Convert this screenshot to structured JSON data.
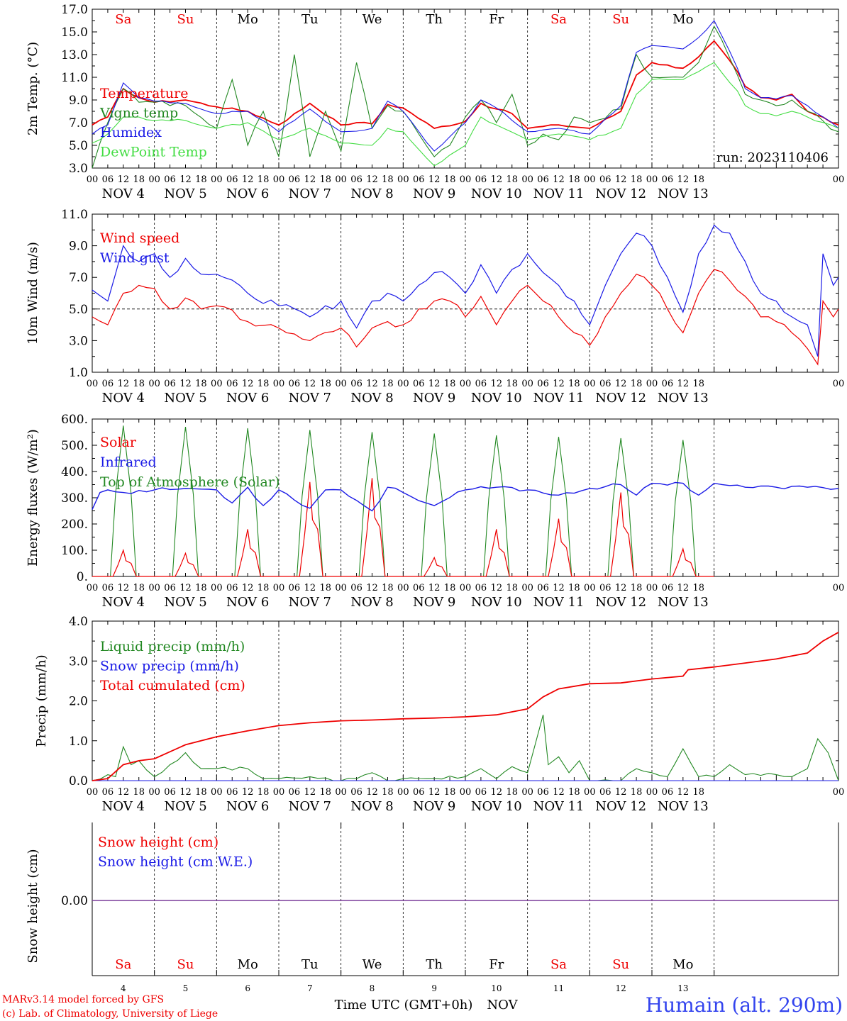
{
  "run_label": "run: 2023110406",
  "footer": {
    "model": "MARv3.14 model forced by GFS",
    "credit": "(c) Lab. of Climatology, University of Liege",
    "xlabel": "Time UTC (GMT+0h)",
    "month": "NOV",
    "station": "Humain (alt. 290m)"
  },
  "days": {
    "names": [
      "Sa",
      "Su",
      "Mo",
      "Tu",
      "We",
      "Th",
      "Fr",
      "Sa",
      "Su",
      "Mo"
    ],
    "colors": [
      "#ee0000",
      "#ee0000",
      "#000000",
      "#000000",
      "#000000",
      "#000000",
      "#000000",
      "#ee0000",
      "#ee0000",
      "#000000"
    ],
    "dates": [
      "NOV  4",
      "NOV  5",
      "NOV  6",
      "NOV  7",
      "NOV  8",
      "NOV  9",
      "NOV 10",
      "NOV 11",
      "NOV 12",
      "NOV 13"
    ],
    "numbers": [
      "4",
      "5",
      "6",
      "7",
      "8",
      "9",
      "10",
      "11",
      "12",
      "13"
    ],
    "hour_ticks": [
      "00",
      "06",
      "12",
      "18"
    ],
    "end_tick": "00"
  },
  "chart_data": [
    {
      "type": "line",
      "ylabel": "2m Temp. (°C)",
      "ylim": [
        3,
        17
      ],
      "yticks": [
        "3.0",
        "5.0",
        "7.0",
        "9.0",
        "11.0",
        "13.0",
        "15.0",
        "17.0"
      ],
      "x_unit": "hours since NOV 4 00 UTC",
      "series": [
        {
          "name": "Temperature",
          "color": "#ee0000",
          "x": [
            0,
            6,
            12,
            18,
            24,
            36,
            48,
            60,
            72,
            84,
            96,
            102,
            108,
            114,
            120,
            132,
            144,
            150,
            156,
            162,
            168,
            180,
            192,
            204,
            210,
            216,
            228,
            234,
            240,
            249,
            252,
            258,
            264,
            270,
            276,
            288
          ],
          "y": [
            6.8,
            7.5,
            10.0,
            9.2,
            8.8,
            9.0,
            8.4,
            8.0,
            6.8,
            8.7,
            6.8,
            7.0,
            6.9,
            8.6,
            8.3,
            6.5,
            7.1,
            8.7,
            8.2,
            7.8,
            6.5,
            6.8,
            6.5,
            8.0,
            11.2,
            12.3,
            11.8,
            12.8,
            14.2,
            11.5,
            10.2,
            9.2,
            9.0,
            9.5,
            8.0,
            6.8
          ]
        },
        {
          "name": "Vigne temp",
          "color": "#228822",
          "x": [
            0,
            6,
            12,
            18,
            24,
            36,
            48,
            54,
            60,
            66,
            72,
            78,
            84,
            90,
            96,
            102,
            108,
            114,
            120,
            126,
            132,
            138,
            144,
            150,
            156,
            162,
            168,
            174,
            180,
            186,
            192,
            204,
            210,
            216,
            228,
            234,
            240,
            249,
            252,
            258,
            264,
            270,
            276,
            288
          ],
          "y": [
            3.0,
            7.0,
            10.0,
            8.8,
            8.8,
            8.5,
            6.5,
            10.8,
            5.0,
            8.0,
            4.0,
            13.0,
            4.0,
            8.0,
            4.5,
            12.3,
            6.5,
            8.5,
            8.0,
            6.0,
            4.0,
            5.0,
            7.5,
            9.0,
            7.0,
            9.5,
            5.0,
            6.0,
            5.5,
            7.5,
            7.0,
            8.2,
            13.0,
            11.0,
            11.0,
            12.3,
            15.5,
            11.2,
            9.5,
            9.0,
            8.5,
            9.0,
            8.0,
            6.2
          ]
        },
        {
          "name": "Humidex",
          "color": "#1a1ae6",
          "x": [
            0,
            6,
            12,
            18,
            24,
            36,
            48,
            60,
            72,
            84,
            96,
            108,
            114,
            120,
            132,
            144,
            150,
            156,
            168,
            180,
            192,
            204,
            210,
            216,
            228,
            234,
            240,
            249,
            252,
            258,
            264,
            270,
            276,
            288
          ],
          "y": [
            6.0,
            6.8,
            10.5,
            9.2,
            8.9,
            8.7,
            7.8,
            8.0,
            6.2,
            8.2,
            6.2,
            6.5,
            8.9,
            8.0,
            4.5,
            7.0,
            9.0,
            8.3,
            6.2,
            6.5,
            6.0,
            8.5,
            13.2,
            13.8,
            13.5,
            14.5,
            16.0,
            11.8,
            10.0,
            9.2,
            9.1,
            9.4,
            8.5,
            6.5
          ]
        },
        {
          "name": "DewPoint Temp",
          "color": "#44dd44",
          "x": [
            0,
            6,
            12,
            18,
            24,
            36,
            48,
            60,
            72,
            84,
            96,
            108,
            114,
            120,
            132,
            144,
            150,
            156,
            168,
            180,
            192,
            204,
            210,
            216,
            228,
            234,
            240,
            249,
            252,
            258,
            264,
            270,
            276,
            288
          ],
          "y": [
            5.2,
            6.0,
            7.5,
            7.5,
            7.2,
            7.2,
            6.5,
            7.0,
            5.5,
            6.5,
            5.2,
            5.0,
            6.5,
            6.2,
            3.2,
            5.0,
            7.5,
            6.8,
            5.5,
            6.0,
            5.5,
            6.5,
            9.5,
            10.8,
            10.8,
            11.5,
            12.3,
            9.8,
            8.5,
            7.8,
            7.6,
            8.0,
            7.5,
            6.5
          ]
        }
      ]
    },
    {
      "type": "line",
      "ylabel": "10m Wind (m/s)",
      "ylim": [
        1,
        11
      ],
      "yticks": [
        "1.0",
        "3.0",
        "5.0",
        "7.0",
        "9.0",
        "11.0"
      ],
      "reference_line": 5.0,
      "x_unit": "hours since NOV 4 00 UTC",
      "series": [
        {
          "name": "Wind speed",
          "color": "#ee0000",
          "x": [
            0,
            6,
            12,
            18,
            24,
            30,
            36,
            42,
            48,
            60,
            72,
            84,
            96,
            102,
            108,
            114,
            120,
            126,
            132,
            138,
            144,
            150,
            156,
            162,
            168,
            180,
            186,
            192,
            198,
            204,
            210,
            216,
            222,
            228,
            234,
            240,
            246,
            252,
            258,
            264,
            270,
            276,
            280,
            282,
            286,
            288
          ],
          "y": [
            4.5,
            4.0,
            6.0,
            6.5,
            6.3,
            5.0,
            5.7,
            5.0,
            5.2,
            4.2,
            3.8,
            3.0,
            3.8,
            2.6,
            3.8,
            4.2,
            4.0,
            5.0,
            5.5,
            5.5,
            4.5,
            5.8,
            4.0,
            5.5,
            6.5,
            4.5,
            3.5,
            2.7,
            4.5,
            6.0,
            7.2,
            6.5,
            5.0,
            3.5,
            6.0,
            7.5,
            6.8,
            5.8,
            4.5,
            4.2,
            3.5,
            2.5,
            1.5,
            5.5,
            4.5,
            5.0
          ]
        },
        {
          "name": "Wind gust",
          "color": "#1a1ae6",
          "x": [
            0,
            6,
            12,
            18,
            24,
            30,
            36,
            42,
            48,
            60,
            72,
            84,
            96,
            102,
            108,
            114,
            120,
            126,
            132,
            138,
            144,
            150,
            156,
            162,
            168,
            180,
            186,
            192,
            198,
            204,
            210,
            216,
            222,
            228,
            234,
            240,
            246,
            252,
            258,
            264,
            270,
            276,
            280,
            282,
            286,
            288
          ],
          "y": [
            6.2,
            5.5,
            9.0,
            8.0,
            8.5,
            7.0,
            8.2,
            7.2,
            7.2,
            6.0,
            5.2,
            4.5,
            5.5,
            3.8,
            5.5,
            6.0,
            5.5,
            6.5,
            7.3,
            7.0,
            6.0,
            7.8,
            6.0,
            7.5,
            8.5,
            6.5,
            5.5,
            4.0,
            6.5,
            8.5,
            9.8,
            9.0,
            7.0,
            4.8,
            8.5,
            10.3,
            9.8,
            8.0,
            6.0,
            5.5,
            4.5,
            4.0,
            2.0,
            8.5,
            6.5,
            7.0
          ]
        }
      ]
    },
    {
      "type": "line",
      "ylabel": "Energy fluxes (W/m²)",
      "ylim": [
        0,
        600
      ],
      "yticks": [
        "0.",
        "100.",
        "200.",
        "300.",
        "400.",
        "500.",
        "600."
      ],
      "x_unit": "hours since NOV 4 00 UTC",
      "toa_peak": [
        575,
        570,
        565,
        558,
        550,
        545,
        538,
        532,
        527,
        520
      ],
      "solar_peak": [
        100,
        88,
        180,
        360,
        375,
        72,
        180,
        220,
        320,
        105
      ],
      "series": [
        {
          "name": "Solar",
          "color": "#ee0000",
          "x": [
            0,
            8,
            12,
            17,
            32,
            36,
            41,
            56,
            60,
            65,
            80,
            84,
            89,
            104,
            108,
            113,
            128,
            132,
            137,
            152,
            156,
            161,
            176,
            180,
            185,
            200,
            204,
            209,
            224,
            228,
            233,
            248,
            252,
            257,
            272,
            276,
            281,
            288
          ],
          "y": [
            0,
            0,
            100,
            0,
            0,
            88,
            0,
            0,
            180,
            0,
            0,
            360,
            0,
            0,
            375,
            0,
            0,
            72,
            0,
            0,
            180,
            0,
            0,
            220,
            0,
            0,
            320,
            0,
            0,
            105,
            0,
            0,
            0,
            0,
            0,
            0,
            0,
            0
          ]
        },
        {
          "name": "Infrared",
          "color": "#1a1ae6",
          "x": [
            0,
            3,
            6,
            12,
            24,
            36,
            48,
            54,
            60,
            66,
            72,
            84,
            90,
            96,
            108,
            114,
            120,
            132,
            144,
            156,
            168,
            180,
            192,
            204,
            210,
            216,
            228,
            234,
            240,
            252,
            264,
            276,
            288
          ],
          "y": [
            255,
            320,
            330,
            320,
            330,
            335,
            330,
            280,
            340,
            270,
            330,
            260,
            330,
            330,
            250,
            340,
            320,
            270,
            330,
            340,
            330,
            310,
            335,
            350,
            310,
            355,
            355,
            310,
            355,
            340,
            340,
            340,
            335
          ]
        },
        {
          "name": "Top of Atmosphere (Solar)",
          "color": "#228822",
          "x": [],
          "y": []
        }
      ]
    },
    {
      "type": "line",
      "ylabel": "Precip (mm/h)",
      "ylim": [
        0,
        4
      ],
      "yticks": [
        "0.0",
        "1.0",
        "2.0",
        "3.0",
        "4.0"
      ],
      "x_unit": "hours since NOV 4 00 UTC",
      "series": [
        {
          "name": "Liquid precip (mm/h)",
          "color": "#228822",
          "x": [
            0,
            6,
            9,
            12,
            15,
            18,
            24,
            30,
            36,
            42,
            48,
            60,
            66,
            72,
            84,
            96,
            102,
            108,
            114,
            120,
            132,
            144,
            150,
            156,
            162,
            168,
            174,
            176,
            180,
            184,
            188,
            192,
            204,
            210,
            216,
            222,
            228,
            234,
            240,
            246,
            252,
            264,
            270,
            276,
            280,
            284,
            288
          ],
          "y": [
            0,
            0.15,
            0.1,
            0.85,
            0.4,
            0.5,
            0.1,
            0.4,
            0.7,
            0.3,
            0.3,
            0.3,
            0.05,
            0.05,
            0.1,
            0.0,
            0.05,
            0.2,
            0.0,
            0.05,
            0.05,
            0.1,
            0.3,
            0.05,
            0.35,
            0.2,
            1.65,
            0.4,
            0.6,
            0.2,
            0.5,
            0.0,
            0.0,
            0.3,
            0.2,
            0.1,
            0.8,
            0.1,
            0.1,
            0.4,
            0.15,
            0.15,
            0.1,
            0.3,
            1.05,
            0.7,
            0.0
          ]
        },
        {
          "name": "Snow precip (mm/h)",
          "color": "#1a1ae6",
          "x": [
            0,
            288
          ],
          "y": [
            0,
            0
          ]
        },
        {
          "name": "Total cumulated (cm)",
          "color": "#ee0000",
          "x": [
            0,
            6,
            12,
            18,
            24,
            36,
            48,
            60,
            72,
            84,
            96,
            108,
            120,
            132,
            144,
            156,
            168,
            174,
            180,
            192,
            204,
            216,
            228,
            230,
            240,
            252,
            264,
            276,
            282,
            288
          ],
          "y": [
            0,
            0.05,
            0.4,
            0.5,
            0.55,
            0.9,
            1.1,
            1.25,
            1.38,
            1.45,
            1.5,
            1.52,
            1.55,
            1.57,
            1.6,
            1.65,
            1.8,
            2.1,
            2.3,
            2.43,
            2.45,
            2.55,
            2.62,
            2.78,
            2.85,
            2.95,
            3.05,
            3.2,
            3.5,
            3.72
          ]
        }
      ]
    },
    {
      "type": "line",
      "ylabel": "Snow height (cm)",
      "yticks": [
        "0.00"
      ],
      "x_unit": "hours since NOV 4 00 UTC",
      "series": [
        {
          "name": "Snow height (cm)",
          "color": "#ee0000",
          "x": [
            0,
            288
          ],
          "y": [
            0,
            0
          ]
        },
        {
          "name": "Snow height (cm W.E.)",
          "color": "#1a1ae6",
          "x": [
            0,
            288
          ],
          "y": [
            0,
            0
          ]
        }
      ]
    }
  ]
}
